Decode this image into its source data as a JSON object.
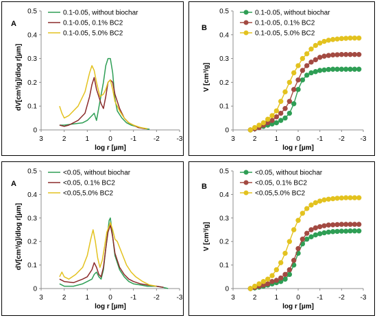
{
  "chart_data": [
    {
      "type": "line",
      "panel_letter": "A",
      "ylabel": "dV[cm³/g]/dlog r[µm]",
      "xlabel": "log r [µm]",
      "xlim": [
        3,
        -3
      ],
      "ylim": [
        0,
        0.5
      ],
      "x_ticks": [
        "3",
        "2",
        "1",
        "0",
        "-1",
        "-2",
        "-3"
      ],
      "y_ticks": [
        "0",
        "0.1",
        "0.2",
        "0.3",
        "0.4",
        "0.5"
      ],
      "legend_position": "top-left",
      "series": [
        {
          "name": "0.1-0.05, without biochar",
          "color": "#2e9e55",
          "x": [
            2.2,
            2.0,
            1.6,
            1.2,
            1.0,
            0.8,
            0.7,
            0.6,
            0.45,
            0.3,
            0.2,
            0.1,
            0.0,
            -0.1,
            -0.2,
            -0.3,
            -0.5,
            -0.7,
            -0.9,
            -1.1,
            -1.3,
            -1.5,
            -1.7
          ],
          "y": [
            0.02,
            0.02,
            0.025,
            0.03,
            0.04,
            0.06,
            0.07,
            0.04,
            0.12,
            0.2,
            0.27,
            0.3,
            0.3,
            0.24,
            0.13,
            0.08,
            0.05,
            0.03,
            0.02,
            0.015,
            0.01,
            0.005,
            0.003
          ]
        },
        {
          "name": "0.1-0.05, 0.1% BC2",
          "color": "#8b2a2a",
          "x": [
            2.2,
            2.0,
            1.8,
            1.4,
            1.1,
            0.9,
            0.8,
            0.7,
            0.6,
            0.4,
            0.3,
            0.2,
            0.1,
            0.0,
            -0.1,
            -0.2,
            -0.4,
            -0.6,
            -0.8,
            -1.0,
            -1.2,
            -1.5
          ],
          "y": [
            0.02,
            0.015,
            0.02,
            0.04,
            0.07,
            0.14,
            0.19,
            0.22,
            0.17,
            0.11,
            0.09,
            0.14,
            0.2,
            0.21,
            0.2,
            0.15,
            0.09,
            0.05,
            0.03,
            0.02,
            0.01,
            0.005
          ]
        },
        {
          "name": "0.1-0.05, 5.0% BC2",
          "color": "#e3c21f",
          "x": [
            2.2,
            2.1,
            2.0,
            1.8,
            1.4,
            1.1,
            0.9,
            0.8,
            0.7,
            0.6,
            0.45,
            0.3,
            0.2,
            0.1,
            0.0,
            -0.1,
            -0.2,
            -0.4,
            -0.6,
            -0.8,
            -1.0,
            -1.3,
            -1.6
          ],
          "y": [
            0.1,
            0.07,
            0.05,
            0.06,
            0.1,
            0.16,
            0.24,
            0.27,
            0.25,
            0.2,
            0.14,
            0.15,
            0.17,
            0.2,
            0.21,
            0.17,
            0.12,
            0.08,
            0.05,
            0.03,
            0.02,
            0.01,
            0.005
          ]
        }
      ]
    },
    {
      "type": "line",
      "panel_letter": "B",
      "ylabel": "V [cm³/g]",
      "xlabel": "log r [µm]",
      "xlim": [
        3,
        -3
      ],
      "ylim": [
        0,
        0.5
      ],
      "x_ticks": [
        "3",
        "2",
        "1",
        "0",
        "-1",
        "-2",
        "-3"
      ],
      "y_ticks": [
        "0",
        "0.1",
        "0.2",
        "0.3",
        "0.4",
        "0.5"
      ],
      "legend_position": "top-left",
      "series": [
        {
          "name": "0.1-0.05, without biochar",
          "color": "#2e9e55",
          "x": [
            2.2,
            2.0,
            1.8,
            1.6,
            1.4,
            1.2,
            1.0,
            0.8,
            0.6,
            0.4,
            0.2,
            0.0,
            -0.2,
            -0.4,
            -0.6,
            -0.8,
            -1.0,
            -1.2,
            -1.4,
            -1.6,
            -1.8,
            -2.0,
            -2.2,
            -2.4,
            -2.6,
            -2.8
          ],
          "y": [
            0.0,
            0.005,
            0.01,
            0.015,
            0.02,
            0.025,
            0.03,
            0.04,
            0.05,
            0.07,
            0.11,
            0.17,
            0.21,
            0.23,
            0.24,
            0.245,
            0.25,
            0.252,
            0.254,
            0.255,
            0.255,
            0.255,
            0.255,
            0.255,
            0.255,
            0.255
          ]
        },
        {
          "name": "0.1-0.05, 0.1% BC2",
          "color": "#a34a42",
          "x": [
            2.2,
            2.0,
            1.8,
            1.6,
            1.4,
            1.2,
            1.0,
            0.8,
            0.6,
            0.4,
            0.2,
            0.0,
            -0.2,
            -0.4,
            -0.6,
            -0.8,
            -1.0,
            -1.2,
            -1.4,
            -1.6,
            -1.8,
            -2.0,
            -2.2,
            -2.4,
            -2.6,
            -2.8
          ],
          "y": [
            0.0,
            0.005,
            0.01,
            0.02,
            0.03,
            0.04,
            0.055,
            0.07,
            0.09,
            0.12,
            0.17,
            0.21,
            0.25,
            0.27,
            0.285,
            0.295,
            0.305,
            0.31,
            0.313,
            0.315,
            0.316,
            0.317,
            0.317,
            0.317,
            0.317,
            0.317
          ]
        },
        {
          "name": "0.1-0.05, 5.0% BC2",
          "color": "#e3c21f",
          "x": [
            2.2,
            2.0,
            1.8,
            1.6,
            1.4,
            1.2,
            1.0,
            0.8,
            0.6,
            0.4,
            0.2,
            0.0,
            -0.2,
            -0.4,
            -0.6,
            -0.8,
            -1.0,
            -1.2,
            -1.4,
            -1.6,
            -1.8,
            -2.0,
            -2.2,
            -2.4,
            -2.6,
            -2.8
          ],
          "y": [
            0.0,
            0.01,
            0.02,
            0.03,
            0.045,
            0.06,
            0.08,
            0.12,
            0.16,
            0.2,
            0.24,
            0.27,
            0.3,
            0.32,
            0.34,
            0.355,
            0.365,
            0.372,
            0.377,
            0.38,
            0.382,
            0.384,
            0.385,
            0.386,
            0.386,
            0.386
          ]
        }
      ]
    },
    {
      "type": "line",
      "panel_letter": "A",
      "ylabel": "dV[cm³/g]/dlog r[µm]",
      "xlabel": "log r [µm]",
      "xlim": [
        3,
        -3
      ],
      "ylim": [
        0,
        0.5
      ],
      "x_ticks": [
        "3",
        "2",
        "1",
        "0",
        "-1",
        "-2",
        "-3"
      ],
      "y_ticks": [
        "0",
        "0.1",
        "0.2",
        "0.3",
        "0.4",
        "0.5"
      ],
      "legend_position": "top-left",
      "series": [
        {
          "name": "<0.05, without biochar",
          "color": "#2e9e55",
          "x": [
            2.2,
            2.0,
            1.6,
            1.2,
            1.0,
            0.8,
            0.7,
            0.6,
            0.5,
            0.4,
            0.3,
            0.2,
            0.1,
            0.05,
            0.0,
            -0.1,
            -0.2,
            -0.4,
            -0.6,
            -0.8,
            -1.0,
            -1.3,
            -1.6,
            -2.0,
            -2.3,
            -2.5
          ],
          "y": [
            0.02,
            0.01,
            0.01,
            0.02,
            0.03,
            0.04,
            0.06,
            0.07,
            0.05,
            0.04,
            0.08,
            0.17,
            0.25,
            0.29,
            0.3,
            0.22,
            0.14,
            0.08,
            0.05,
            0.03,
            0.02,
            0.015,
            0.01,
            0.01,
            0.005,
            0.0
          ]
        },
        {
          "name": "<0.05, 0.1% BC2",
          "color": "#8b2a2a",
          "x": [
            2.2,
            2.0,
            1.6,
            1.2,
            1.0,
            0.8,
            0.7,
            0.6,
            0.5,
            0.4,
            0.3,
            0.2,
            0.1,
            0.0,
            -0.1,
            -0.2,
            -0.4,
            -0.6,
            -0.8,
            -1.0,
            -1.3,
            -1.6,
            -2.0,
            -2.3
          ],
          "y": [
            0.04,
            0.03,
            0.025,
            0.04,
            0.05,
            0.08,
            0.11,
            0.09,
            0.06,
            0.05,
            0.09,
            0.17,
            0.24,
            0.27,
            0.22,
            0.15,
            0.09,
            0.06,
            0.04,
            0.03,
            0.02,
            0.015,
            0.01,
            0.005
          ]
        },
        {
          "name": "<0.05,5.0% BC2",
          "color": "#e3c21f",
          "x": [
            2.2,
            2.1,
            2.0,
            1.8,
            1.5,
            1.2,
            1.0,
            0.85,
            0.75,
            0.65,
            0.55,
            0.45,
            0.35,
            0.25,
            0.15,
            0.0,
            -0.1,
            -0.2,
            -0.3,
            -0.5,
            -0.7,
            -0.9,
            -1.1,
            -1.4,
            -1.7,
            -2.0
          ],
          "y": [
            0.05,
            0.07,
            0.05,
            0.04,
            0.06,
            0.09,
            0.14,
            0.21,
            0.25,
            0.2,
            0.13,
            0.09,
            0.12,
            0.18,
            0.24,
            0.28,
            0.25,
            0.21,
            0.2,
            0.15,
            0.1,
            0.07,
            0.05,
            0.03,
            0.015,
            0.01
          ]
        }
      ]
    },
    {
      "type": "line",
      "panel_letter": "B",
      "ylabel": "V [cm³/g]",
      "xlabel": "log r [µm]",
      "xlim": [
        3,
        -3
      ],
      "ylim": [
        0,
        0.5
      ],
      "x_ticks": [
        "3",
        "2",
        "1",
        "0",
        "-1",
        "-2",
        "-3"
      ],
      "y_ticks": [
        "0",
        "0.1",
        "0.2",
        "0.3",
        "0.4",
        "0.5"
      ],
      "legend_position": "top-left",
      "series": [
        {
          "name": "<0.05, without biochar",
          "color": "#2e9e55",
          "x": [
            2.2,
            2.0,
            1.8,
            1.6,
            1.4,
            1.2,
            1.0,
            0.8,
            0.6,
            0.4,
            0.2,
            0.0,
            -0.2,
            -0.4,
            -0.6,
            -0.8,
            -1.0,
            -1.2,
            -1.4,
            -1.6,
            -1.8,
            -2.0,
            -2.2,
            -2.4,
            -2.6,
            -2.8
          ],
          "y": [
            0.0,
            0.003,
            0.006,
            0.01,
            0.015,
            0.02,
            0.025,
            0.03,
            0.04,
            0.06,
            0.1,
            0.15,
            0.19,
            0.21,
            0.22,
            0.228,
            0.233,
            0.237,
            0.24,
            0.242,
            0.243,
            0.244,
            0.244,
            0.245,
            0.245,
            0.245
          ]
        },
        {
          "name": "<0.05, 0.1% BC2",
          "color": "#a34a42",
          "x": [
            2.2,
            2.0,
            1.8,
            1.6,
            1.4,
            1.2,
            1.0,
            0.8,
            0.6,
            0.4,
            0.2,
            0.0,
            -0.2,
            -0.4,
            -0.6,
            -0.8,
            -1.0,
            -1.2,
            -1.4,
            -1.6,
            -1.8,
            -2.0,
            -2.2,
            -2.4,
            -2.6,
            -2.8
          ],
          "y": [
            0.0,
            0.005,
            0.01,
            0.015,
            0.02,
            0.03,
            0.035,
            0.045,
            0.06,
            0.08,
            0.12,
            0.17,
            0.21,
            0.235,
            0.25,
            0.258,
            0.263,
            0.267,
            0.27,
            0.271,
            0.272,
            0.273,
            0.273,
            0.273,
            0.273,
            0.273
          ]
        },
        {
          "name": "<0.05,5.0% BC2",
          "color": "#e3c21f",
          "x": [
            2.2,
            2.0,
            1.8,
            1.6,
            1.4,
            1.2,
            1.0,
            0.8,
            0.6,
            0.4,
            0.2,
            0.0,
            -0.2,
            -0.4,
            -0.6,
            -0.8,
            -1.0,
            -1.2,
            -1.4,
            -1.6,
            -1.8,
            -2.0,
            -2.2,
            -2.4,
            -2.6,
            -2.8
          ],
          "y": [
            0.0,
            0.01,
            0.02,
            0.03,
            0.04,
            0.055,
            0.08,
            0.11,
            0.15,
            0.2,
            0.25,
            0.29,
            0.32,
            0.34,
            0.355,
            0.365,
            0.372,
            0.377,
            0.38,
            0.382,
            0.384,
            0.385,
            0.386,
            0.386,
            0.386,
            0.386
          ]
        }
      ]
    }
  ]
}
